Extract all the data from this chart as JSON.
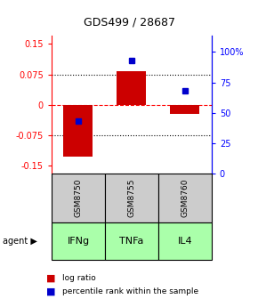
{
  "title": "GDS499 / 28687",
  "samples": [
    "GSM8750",
    "GSM8755",
    "GSM8760"
  ],
  "agents": [
    "IFNg",
    "TNFa",
    "IL4"
  ],
  "log_ratios": [
    -0.128,
    0.082,
    -0.022
  ],
  "percentile_ranks": [
    43,
    93,
    68
  ],
  "bar_color": "#cc0000",
  "dot_color": "#0000cc",
  "left_yticks": [
    0.15,
    0.075,
    0,
    -0.075,
    -0.15
  ],
  "left_ylabels": [
    "0.15",
    "0.075",
    "0",
    "-0.075",
    "-0.15"
  ],
  "right_yticks": [
    100,
    75,
    50,
    25,
    0
  ],
  "right_ylabels": [
    "100%",
    "75",
    "50",
    "25",
    "0"
  ],
  "ylim": [
    -0.17,
    0.17
  ],
  "right_ylim": [
    0,
    113.3
  ],
  "agent_colors": [
    "#aaffaa",
    "#aaffaa",
    "#aaffaa"
  ],
  "sample_bg": "#cccccc",
  "legend_log_color": "#cc0000",
  "legend_dot_color": "#0000cc",
  "bar_width": 0.55
}
